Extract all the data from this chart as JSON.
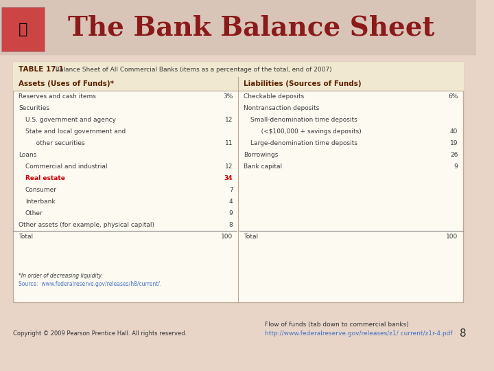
{
  "title": "The Bank Balance Sheet",
  "title_color": "#8B1A1A",
  "title_fontsize": 28,
  "bg_color": "#F5EDE0",
  "slide_bg": "#E8D5C8",
  "table_title": "TABLE 17.1",
  "table_subtitle": "  Balance Sheet of All Commercial Banks (items as a percentage of the total, end of 2007)",
  "header_left": "Assets (Uses of Funds)*",
  "header_right": "Liabilities (Sources of Funds)",
  "assets": [
    {
      "label": "Reserves and cash items",
      "indent": 0,
      "value": "3%",
      "bold_val": false
    },
    {
      "label": "Securities",
      "indent": 0,
      "value": "",
      "bold_val": false
    },
    {
      "label": "U.S. government and agency",
      "indent": 1,
      "value": "12",
      "bold_val": false
    },
    {
      "label": "State and local government and",
      "indent": 1,
      "value": "",
      "bold_val": false
    },
    {
      "label": "   other securities",
      "indent": 2,
      "value": "11",
      "bold_val": false
    },
    {
      "label": "Loans",
      "indent": 0,
      "value": "",
      "bold_val": false
    },
    {
      "label": "Commercial and industrial",
      "indent": 1,
      "value": "12",
      "bold_val": false
    },
    {
      "label": "Real estate",
      "indent": 1,
      "value": "34",
      "bold_val": true
    },
    {
      "label": "Consumer",
      "indent": 1,
      "value": "7",
      "bold_val": false
    },
    {
      "label": "Interbank",
      "indent": 1,
      "value": "4",
      "bold_val": false
    },
    {
      "label": "Other",
      "indent": 1,
      "value": "9",
      "bold_val": false
    },
    {
      "label": "Other assets (for example, physical capital)",
      "indent": 0,
      "value": "8",
      "bold_val": false
    },
    {
      "label": "Total",
      "indent": 0,
      "value": "100",
      "bold_val": false
    }
  ],
  "liabilities": [
    {
      "label": "Checkable deposits",
      "indent": 0,
      "value": "6%",
      "bold_val": false
    },
    {
      "label": "Nontransaction deposits",
      "indent": 0,
      "value": "",
      "bold_val": false
    },
    {
      "label": "Small-denomination time deposits",
      "indent": 1,
      "value": "",
      "bold_val": false
    },
    {
      "label": "   (<$100,000 + savings deposits)",
      "indent": 2,
      "value": "40",
      "bold_val": false
    },
    {
      "label": "Large-denomination time deposits",
      "indent": 1,
      "value": "19",
      "bold_val": false
    },
    {
      "label": "Borrowings",
      "indent": 0,
      "value": "26",
      "bold_val": false
    },
    {
      "label": "Bank capital",
      "indent": 0,
      "value": "9",
      "bold_val": false
    },
    {
      "label": "",
      "indent": 0,
      "value": "",
      "bold_val": false
    },
    {
      "label": "",
      "indent": 0,
      "value": "",
      "bold_val": false
    },
    {
      "label": "",
      "indent": 0,
      "value": "",
      "bold_val": false
    },
    {
      "label": "",
      "indent": 0,
      "value": "",
      "bold_val": false
    },
    {
      "label": "",
      "indent": 0,
      "value": "",
      "bold_val": false
    },
    {
      "label": "Total",
      "indent": 0,
      "value": "100",
      "bold_val": false
    }
  ],
  "footnote1": "*In order of decreasing liquidity.",
  "footnote2": "Source:  www.federalreserve.gov/releases/h8/current/.",
  "footer_left": "Copyright © 2009 Pearson Prentice Hall. All rights reserved.",
  "footer_flow": "Flow of funds (tab down to commercial banks)",
  "footer_link": "http://www.federalreserve.gov/releases/z1/\ncurrent/z1r-4.pdf",
  "footer_page": "8",
  "table_bg": "#FDFAF2",
  "header_bg": "#F0E8D0",
  "text_color": "#3A3A3A",
  "header_text_color": "#5A2000",
  "bold_color": "#CC0000"
}
